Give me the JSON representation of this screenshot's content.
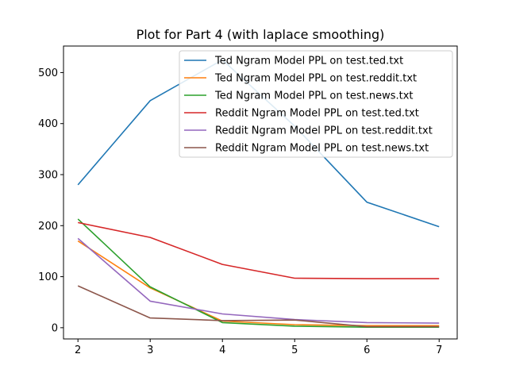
{
  "chart_data": {
    "type": "line",
    "title": "Plot for Part 4 (with laplace smoothing)",
    "xlabel": "",
    "ylabel": "",
    "x": [
      2,
      3,
      4,
      5,
      6,
      7
    ],
    "xlim": [
      1.8,
      7.25
    ],
    "ylim": [
      -22,
      552
    ],
    "xticks": [
      2,
      3,
      4,
      5,
      6,
      7
    ],
    "yticks": [
      0,
      100,
      200,
      300,
      400,
      500
    ],
    "grid": false,
    "legend_position": "upper right",
    "series": [
      {
        "name": "Ted Ngram Model PPL on test.ted.txt",
        "color": "#1f77b4",
        "values": [
          280,
          445,
          525,
          395,
          246,
          198
        ]
      },
      {
        "name": "Ted Ngram Model PPL on test.reddit.txt",
        "color": "#ff7f0e",
        "values": [
          170,
          78,
          13,
          6,
          4,
          4
        ]
      },
      {
        "name": "Ted Ngram Model PPL on test.news.txt",
        "color": "#2ca02c",
        "values": [
          213,
          80,
          10,
          3,
          1,
          1
        ]
      },
      {
        "name": "Reddit Ngram Model PPL on test.ted.txt",
        "color": "#d62728",
        "values": [
          206,
          177,
          124,
          97,
          96,
          96
        ]
      },
      {
        "name": "Reddit Ngram Model PPL on test.reddit.txt",
        "color": "#9467bd",
        "values": [
          175,
          52,
          27,
          16,
          10,
          9
        ]
      },
      {
        "name": "Reddit Ngram Model PPL on test.news.txt",
        "color": "#8c564b",
        "values": [
          82,
          19,
          14,
          15,
          2,
          2
        ]
      }
    ]
  }
}
